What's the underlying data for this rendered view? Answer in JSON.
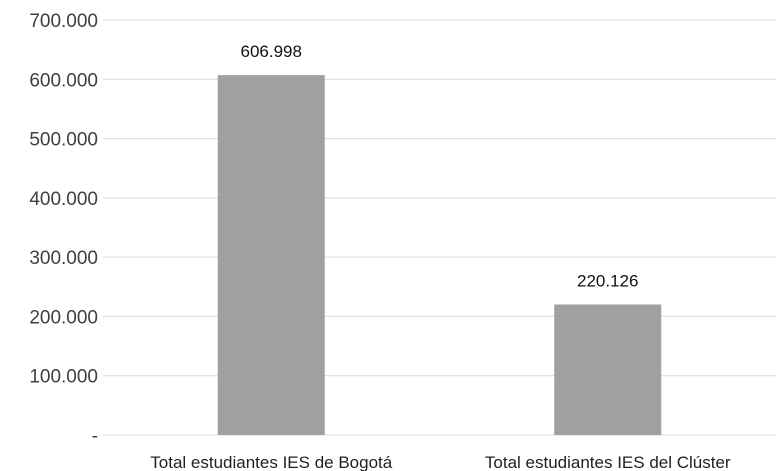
{
  "chart_data": {
    "type": "bar",
    "categories": [
      "Total estudiantes IES de Bogotá",
      "Total estudiantes IES del Clúster"
    ],
    "values": [
      606998,
      220126
    ],
    "data_labels": [
      "606.998",
      "220.126"
    ],
    "ylim": [
      0,
      700000
    ],
    "yticks": [
      0,
      100000,
      200000,
      300000,
      400000,
      500000,
      600000,
      700000
    ],
    "ytick_labels": [
      "-",
      "100.000",
      "200.000",
      "300.000",
      "400.000",
      "500.000",
      "600.000",
      "700.000"
    ],
    "title": "",
    "xlabel": "",
    "ylabel": "",
    "grid": true,
    "bar_color": "#a0a0a0"
  }
}
